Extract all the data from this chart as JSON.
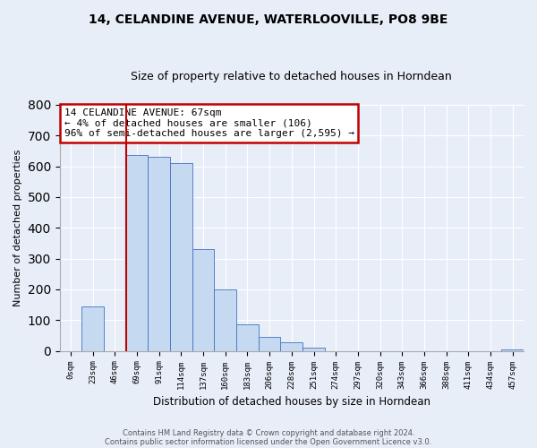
{
  "title": "14, CELANDINE AVENUE, WATERLOOVILLE, PO8 9BE",
  "subtitle": "Size of property relative to detached houses in Horndean",
  "xlabel": "Distribution of detached houses by size in Horndean",
  "ylabel": "Number of detached properties",
  "bar_labels": [
    "0sqm",
    "23sqm",
    "46sqm",
    "69sqm",
    "91sqm",
    "114sqm",
    "137sqm",
    "160sqm",
    "183sqm",
    "206sqm",
    "228sqm",
    "251sqm",
    "274sqm",
    "297sqm",
    "320sqm",
    "343sqm",
    "366sqm",
    "388sqm",
    "411sqm",
    "434sqm",
    "457sqm"
  ],
  "bar_values": [
    0,
    145,
    0,
    635,
    630,
    610,
    330,
    200,
    85,
    46,
    27,
    12,
    0,
    0,
    0,
    0,
    0,
    0,
    0,
    0,
    4
  ],
  "bar_color": "#c5d9f1",
  "bar_edge_color": "#4472c4",
  "ylim": [
    0,
    800
  ],
  "yticks": [
    0,
    100,
    200,
    300,
    400,
    500,
    600,
    700,
    800
  ],
  "annotation_title": "14 CELANDINE AVENUE: 67sqm",
  "annotation_line1": "← 4% of detached houses are smaller (106)",
  "annotation_line2": "96% of semi-detached houses are larger (2,595) →",
  "annotation_box_color": "#ffffff",
  "annotation_box_edge": "#c00000",
  "red_line_color": "#c00000",
  "footnote1": "Contains HM Land Registry data © Crown copyright and database right 2024.",
  "footnote2": "Contains public sector information licensed under the Open Government Licence v3.0.",
  "bg_color": "#e8eef8"
}
